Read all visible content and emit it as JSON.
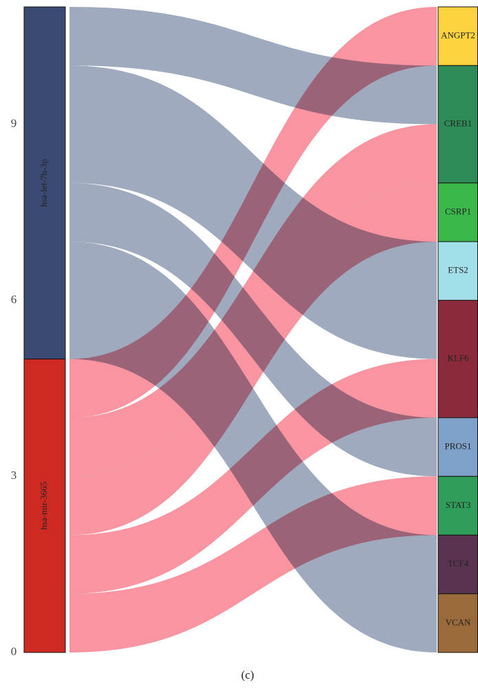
{
  "chart_data": {
    "type": "sankey",
    "caption": "(c)",
    "ylim": [
      0,
      11
    ],
    "yticks": [
      0,
      3,
      6,
      9
    ],
    "sources": [
      {
        "name": "hsa-let-7b-3p",
        "color": "#3b4a72",
        "link_color": "#8f9bb4"
      },
      {
        "name": "hsa-mir-3665",
        "color": "#cc2a22",
        "link_color": "#f7838f"
      }
    ],
    "targets": [
      {
        "name": "ANGPT2",
        "color": "#fdd33f"
      },
      {
        "name": "CREB1",
        "color": "#2e8b57"
      },
      {
        "name": "CSRP1",
        "color": "#3cb84b"
      },
      {
        "name": "ETS2",
        "color": "#a3dfe8"
      },
      {
        "name": "KLF6",
        "color": "#8b2a3a"
      },
      {
        "name": "PROS1",
        "color": "#7fa0c8"
      },
      {
        "name": "STAT3",
        "color": "#2e9e5a"
      },
      {
        "name": "TCF4",
        "color": "#5a3350"
      },
      {
        "name": "VCAN",
        "color": "#9a6a3a"
      }
    ],
    "links": [
      {
        "source": 0,
        "target": 1,
        "value": 1
      },
      {
        "source": 0,
        "target": 3,
        "value": 1
      },
      {
        "source": 0,
        "target": 4,
        "value": 1
      },
      {
        "source": 0,
        "target": 5,
        "value": 1
      },
      {
        "source": 0,
        "target": 7,
        "value": 1
      },
      {
        "source": 0,
        "target": 8,
        "value": 1
      },
      {
        "source": 1,
        "target": 0,
        "value": 1
      },
      {
        "source": 1,
        "target": 1,
        "value": 1
      },
      {
        "source": 1,
        "target": 2,
        "value": 1
      },
      {
        "source": 1,
        "target": 4,
        "value": 1
      },
      {
        "source": 1,
        "target": 6,
        "value": 1
      }
    ]
  }
}
